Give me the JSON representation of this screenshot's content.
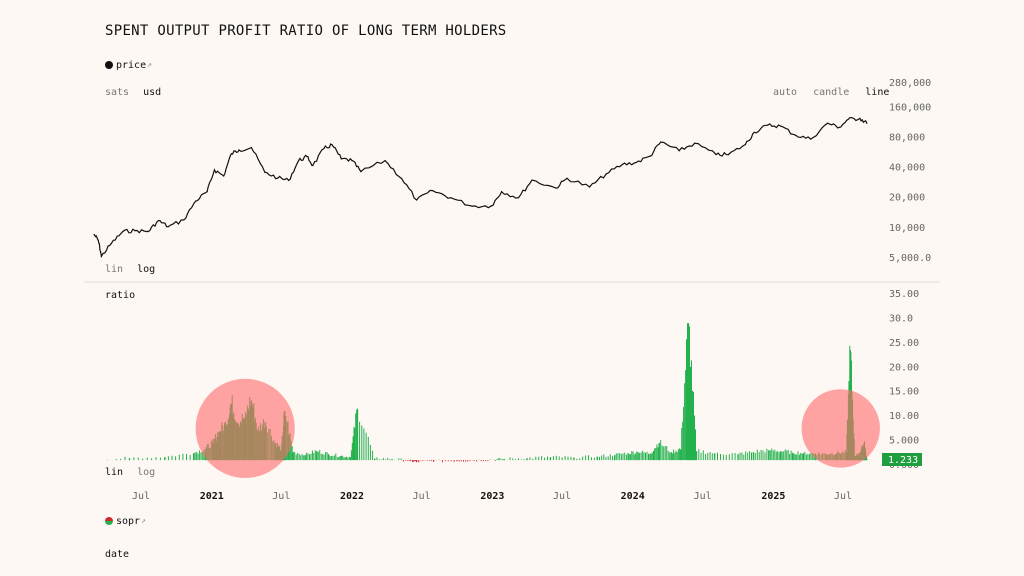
{
  "title": "SPENT OUTPUT PROFIT RATIO OF LONG TERM HOLDERS",
  "price_legend": {
    "label": "price",
    "arrow": "↗"
  },
  "denomination": {
    "options": [
      "sats",
      "usd"
    ],
    "selected": "usd"
  },
  "chart_style": {
    "options": [
      "auto",
      "candle",
      "line"
    ],
    "selected": "line"
  },
  "price_scale": {
    "options": [
      "lin",
      "log"
    ],
    "selected": "log"
  },
  "ratio_scale": {
    "options": [
      "lin",
      "log"
    ],
    "selected": "lin"
  },
  "sopr_legend": {
    "label": "sopr",
    "arrow": "↗"
  },
  "footer_label": "date",
  "current_value_badge": "1.233",
  "colors": {
    "background": "#fdf8f4",
    "price_line": "#111111",
    "ratio_up": "#22b14c",
    "ratio_down": "#cc2b2b",
    "badge": "#1e9e3e",
    "highlight": "#ff6b6b"
  },
  "chart_data": [
    {
      "type": "line",
      "name": "price",
      "y_scale": "log",
      "y_ticks": [
        "280,000",
        "160,000",
        "80,000",
        "40,000",
        "20,000",
        "10,000",
        "5,000.0"
      ],
      "y_tick_values": [
        280000,
        160000,
        80000,
        40000,
        20000,
        10000,
        5000
      ],
      "ylim": [
        4000,
        300000
      ],
      "x": [
        "2020-03-01",
        "2020-03-12",
        "2020-03-20",
        "2020-04-15",
        "2020-05-15",
        "2020-06-15",
        "2020-07-20",
        "2020-08-15",
        "2020-09-10",
        "2020-10-20",
        "2020-11-20",
        "2020-12-20",
        "2021-01-08",
        "2021-02-01",
        "2021-02-21",
        "2021-03-13",
        "2021-04-14",
        "2021-05-19",
        "2021-06-22",
        "2021-07-20",
        "2021-08-15",
        "2021-09-06",
        "2021-09-21",
        "2021-10-20",
        "2021-11-10",
        "2021-12-04",
        "2022-01-01",
        "2022-01-24",
        "2022-03-28",
        "2022-05-10",
        "2022-06-18",
        "2022-07-30",
        "2022-09-15",
        "2022-11-09",
        "2022-12-30",
        "2023-01-25",
        "2023-03-10",
        "2023-04-14",
        "2023-06-15",
        "2023-07-14",
        "2023-09-11",
        "2023-10-24",
        "2023-12-05",
        "2024-01-10",
        "2024-02-15",
        "2024-03-14",
        "2024-05-01",
        "2024-06-10",
        "2024-08-05",
        "2024-09-06",
        "2024-10-20",
        "2024-11-12",
        "2024-12-17",
        "2025-01-20",
        "2025-02-28",
        "2025-04-08",
        "2025-05-22",
        "2025-06-22",
        "2025-07-14",
        "2025-08-14",
        "2025-09-01"
      ],
      "values": [
        8600,
        7500,
        5200,
        7000,
        9200,
        9400,
        9200,
        11800,
        10300,
        12000,
        18500,
        23000,
        38000,
        33000,
        55000,
        60000,
        63500,
        36000,
        31500,
        29800,
        47000,
        51500,
        42000,
        62000,
        67500,
        49000,
        47000,
        36500,
        47000,
        31000,
        19000,
        23500,
        20000,
        16500,
        16600,
        23000,
        20000,
        30000,
        25000,
        31300,
        25600,
        34500,
        43000,
        45000,
        52000,
        72000,
        59000,
        70000,
        54000,
        54000,
        68000,
        90000,
        106000,
        104000,
        84000,
        77000,
        111000,
        101000,
        121000,
        124000,
        111000
      ]
    },
    {
      "type": "line",
      "name": "ratio",
      "y_ticks": [
        "35.00",
        "30.0",
        "25.00",
        "20.00",
        "15.00",
        "10.00",
        "5.000",
        "0.000"
      ],
      "y_tick_values": [
        35,
        30,
        25,
        20,
        15,
        10,
        5,
        0
      ],
      "ylim": [
        0,
        36
      ],
      "x": [
        "2020-03-01",
        "2020-06-01",
        "2020-09-01",
        "2020-11-15",
        "2020-12-15",
        "2021-01-05",
        "2021-01-20",
        "2021-02-08",
        "2021-02-21",
        "2021-03-10",
        "2021-03-28",
        "2021-04-14",
        "2021-05-01",
        "2021-05-20",
        "2021-06-15",
        "2021-07-01",
        "2021-07-10",
        "2021-08-01",
        "2021-09-01",
        "2021-10-01",
        "2021-11-01",
        "2021-12-01",
        "2021-12-28",
        "2022-01-15",
        "2022-03-01",
        "2022-04-15",
        "2022-06-01",
        "2022-06-18",
        "2022-08-01",
        "2022-10-01",
        "2022-11-15",
        "2023-01-01",
        "2023-02-01",
        "2023-04-01",
        "2023-06-01",
        "2023-08-01",
        "2023-10-01",
        "2023-11-15",
        "2023-12-20",
        "2024-01-15",
        "2024-02-15",
        "2024-03-10",
        "2024-04-10",
        "2024-05-05",
        "2024-05-25",
        "2024-06-15",
        "2024-08-01",
        "2024-10-01",
        "2024-11-10",
        "2024-12-20",
        "2025-01-20",
        "2025-02-20",
        "2025-03-20",
        "2025-04-20",
        "2025-05-20",
        "2025-06-15",
        "2025-07-10",
        "2025-07-20",
        "2025-08-01",
        "2025-08-10",
        "2025-08-25",
        "2025-09-01"
      ],
      "values": [
        1.0,
        1.4,
        1.6,
        2.4,
        3.2,
        4.5,
        6.8,
        8.2,
        12.5,
        8.5,
        9.5,
        13.2,
        7.0,
        8.8,
        4.5,
        3.0,
        11.0,
        2.6,
        2.0,
        2.8,
        2.2,
        1.8,
        1.6,
        11.5,
        1.3,
        1.2,
        0.8,
        0.6,
        0.7,
        0.8,
        0.9,
        1.0,
        1.2,
        1.4,
        1.6,
        1.5,
        1.7,
        2.0,
        2.4,
        2.6,
        2.3,
        4.5,
        2.6,
        3.2,
        29.0,
        2.8,
        2.4,
        2.2,
        2.6,
        3.0,
        2.8,
        2.5,
        2.4,
        2.3,
        2.2,
        2.4,
        2.6,
        23.5,
        1.8,
        2.0,
        4.5,
        1.233
      ]
    }
  ],
  "x_axis": {
    "ticks": [
      {
        "label": "Jul",
        "date": "2020-07-01",
        "bold": false
      },
      {
        "label": "2021",
        "date": "2021-01-01",
        "bold": true
      },
      {
        "label": "Jul",
        "date": "2021-07-01",
        "bold": false
      },
      {
        "label": "2022",
        "date": "2022-01-01",
        "bold": true
      },
      {
        "label": "Jul",
        "date": "2022-07-01",
        "bold": false
      },
      {
        "label": "2023",
        "date": "2023-01-01",
        "bold": true
      },
      {
        "label": "Jul",
        "date": "2023-07-01",
        "bold": false
      },
      {
        "label": "2024",
        "date": "2024-01-01",
        "bold": true
      },
      {
        "label": "Jul",
        "date": "2024-07-01",
        "bold": false
      },
      {
        "label": "2025",
        "date": "2025-01-01",
        "bold": true
      },
      {
        "label": "Jul",
        "date": "2025-07-01",
        "bold": false
      }
    ]
  },
  "highlights": [
    {
      "name": "bull-2021-highlight",
      "start": "2020-11-20",
      "end": "2021-08-05",
      "ratio_center": 7.5
    },
    {
      "name": "current-highlight",
      "start": "2025-03-15",
      "end": "2025-10-05",
      "ratio_center": 7.5
    }
  ]
}
